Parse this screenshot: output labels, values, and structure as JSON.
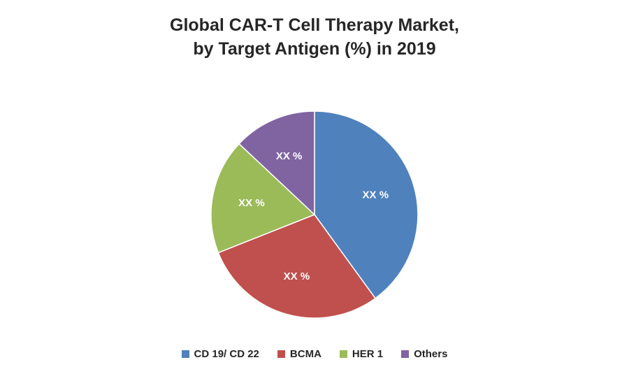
{
  "title": {
    "line1": "Global CAR-T Cell Therapy Market,",
    "line2": "by Target Antigen (%) in 2019"
  },
  "chart_data": {
    "type": "pie",
    "title": "Global CAR-T Cell Therapy Market, by Target Antigen (%) in 2019",
    "categories": [
      "CD 19/ CD 22",
      "BCMA",
      "HER 1",
      "Others"
    ],
    "values": [
      40,
      29,
      18,
      13
    ],
    "data_labels": [
      "XX %",
      "XX %",
      "XX %",
      "XX %"
    ],
    "colors": [
      "#4F81BD",
      "#C0504D",
      "#9BBB59",
      "#8064A2"
    ],
    "start_angle_deg": 0,
    "direction": "clockwise",
    "legend_position": "bottom",
    "label_color": "#ffffff"
  }
}
